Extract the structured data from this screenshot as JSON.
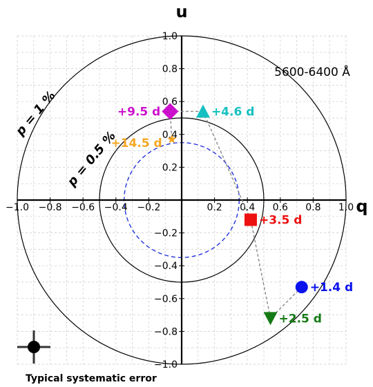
{
  "chart_data": {
    "type": "scatter",
    "title": "",
    "xlabel": "q",
    "ylabel": "u",
    "xlim": [
      -1.0,
      1.0
    ],
    "ylim": [
      -1.0,
      1.0
    ],
    "grid": true,
    "wavelength_label": "5600-6400 Å",
    "x_ticks": [
      "−1.0",
      "−0.8",
      "−0.6",
      "−0.4",
      "−0.2",
      "0.2",
      "0.4",
      "0.6",
      "0.8",
      "1.0"
    ],
    "y_ticks": [
      "1.0",
      "0.8",
      "0.6",
      "0.4",
      "0.2",
      "−0.2",
      "−0.4",
      "−0.6",
      "−0.8",
      "−1.0"
    ],
    "circles": [
      {
        "label": "p = 1 %",
        "radius": 1.0
      },
      {
        "label": "p = 0.5 %",
        "radius": 0.5
      }
    ],
    "dashed_circle": {
      "center": [
        0.0,
        0.0
      ],
      "radius": 0.35,
      "color": "#2233dd"
    },
    "points": [
      {
        "label": "+1.4 d",
        "q": 0.73,
        "u": -0.53,
        "marker": "circle",
        "color": "#0a12ee"
      },
      {
        "label": "+2.5 d",
        "q": 0.54,
        "u": -0.72,
        "marker": "triangle-down",
        "color": "#157a15"
      },
      {
        "label": "+3.5 d",
        "q": 0.42,
        "u": -0.12,
        "marker": "square",
        "color": "#ee1111"
      },
      {
        "label": "+4.6 d",
        "q": 0.13,
        "u": 0.54,
        "marker": "triangle-up",
        "color": "#17c0c0"
      },
      {
        "label": "+9.5 d",
        "q": -0.07,
        "u": 0.54,
        "marker": "diamond",
        "color": "#cc11cc"
      },
      {
        "label": "+14.5 d",
        "q": -0.06,
        "u": 0.37,
        "marker": "star",
        "color": "#f5a623"
      }
    ],
    "systematic_error": {
      "label": "Typical systematic error",
      "q_err": 0.05,
      "u_err": 0.05
    }
  }
}
